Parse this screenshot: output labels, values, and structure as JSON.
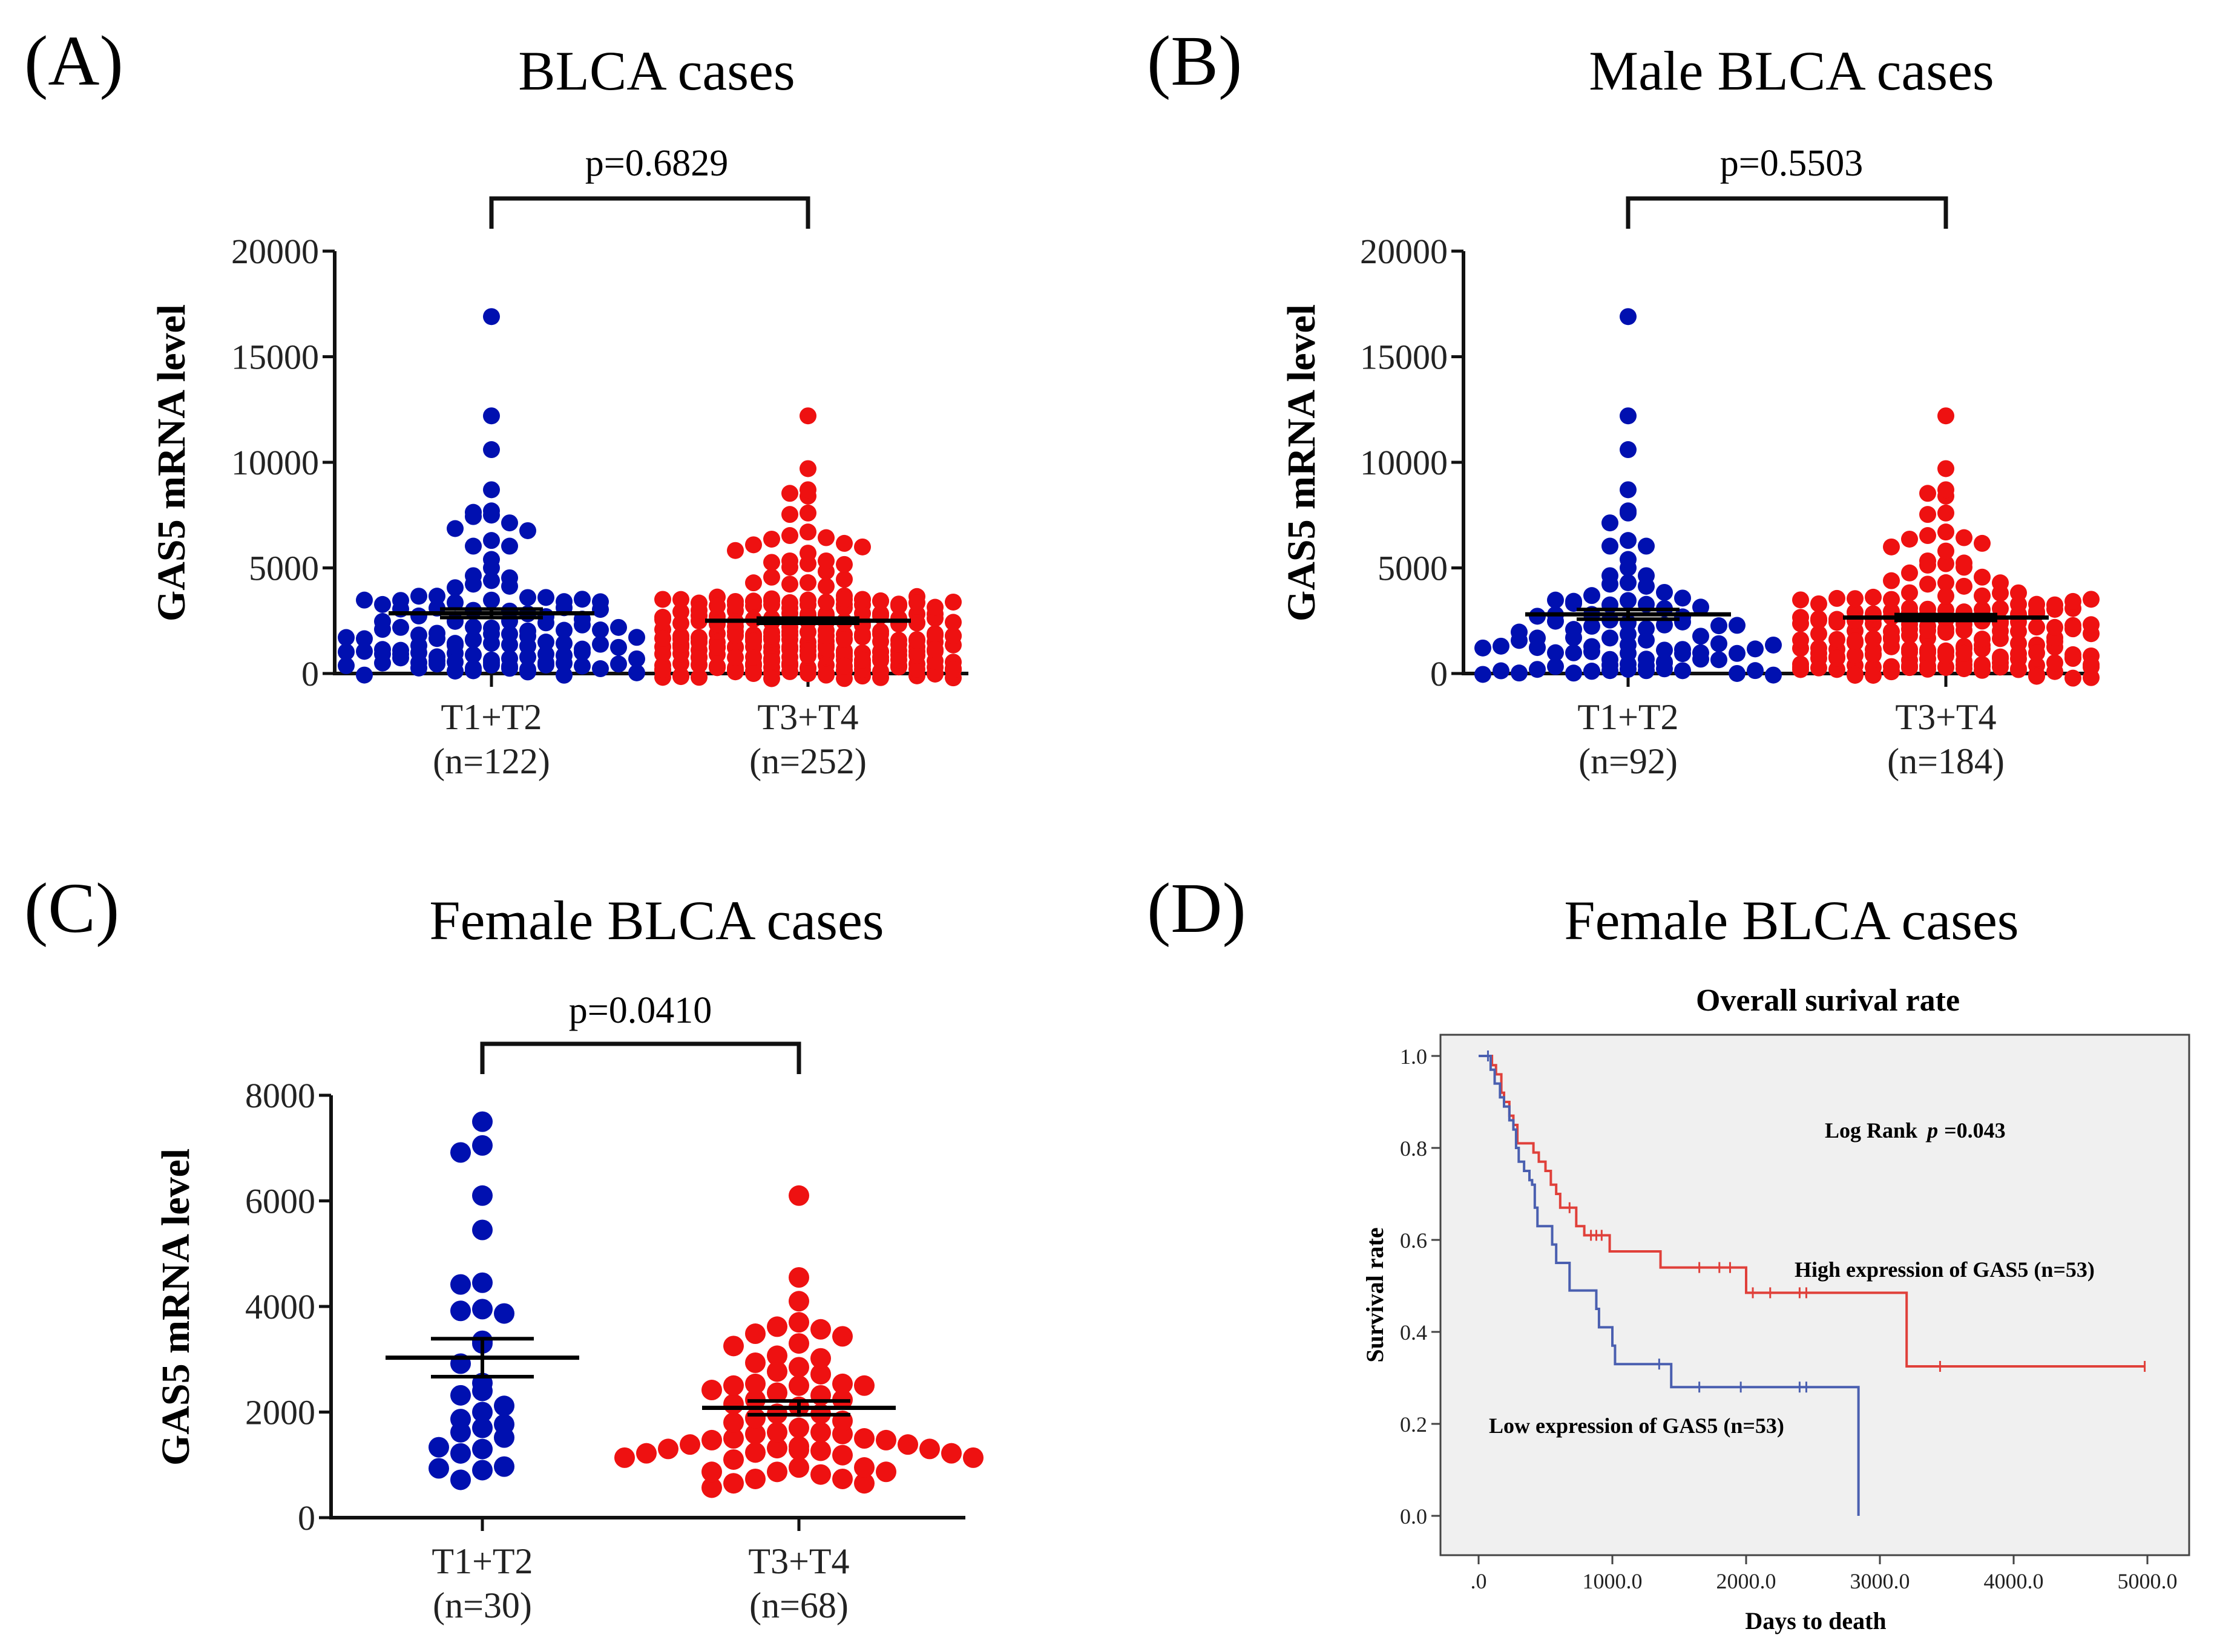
{
  "colors": {
    "low_group": "#0010b0",
    "high_group": "#ee1111",
    "km_high": "#e0403a",
    "km_low": "#4a5fb0",
    "km_bg": "#f0f0f0",
    "axis": "#111111"
  },
  "chart_data": [
    {
      "type": "scatter",
      "panel_label": "(A)",
      "title": "BLCA cases",
      "ylabel": "GAS5 mRNA level",
      "xlabel": "",
      "ylim": [
        0,
        20000
      ],
      "yticks": [
        0,
        5000,
        10000,
        15000,
        20000
      ],
      "ytick_labels": [
        "0",
        "5000",
        "10000",
        "15000",
        "20000"
      ],
      "categories": [
        "T1+T2",
        "T3+T4"
      ],
      "category_n": [
        "(n=122)",
        "(n=252)"
      ],
      "p_value_label": "p=0.6829",
      "series": [
        {
          "name": "T1+T2",
          "n": 122,
          "mean": 2850,
          "sem": 200,
          "outliers": [
            16900,
            12200,
            10600,
            8700,
            7700,
            7700,
            7500,
            7500,
            7200,
            7000,
            6900,
            6300,
            6100,
            6100,
            5400,
            5000,
            4700,
            4600,
            4400,
            4300,
            4200,
            4200
          ],
          "bulk_min": 200,
          "bulk_max": 4000
        },
        {
          "name": "T3+T4",
          "n": 252,
          "mean": 2500,
          "sem": 120,
          "outliers": [
            12200,
            9700,
            8700,
            8600,
            8400,
            7600,
            7600,
            6700,
            6600,
            6500,
            6500,
            6300,
            6300,
            6200,
            6100,
            5700,
            5400,
            5400,
            5400,
            5300,
            5200,
            5100,
            4900,
            4700,
            4600,
            4500,
            4300,
            4300,
            4200
          ],
          "bulk_min": 500,
          "bulk_max": 4100
        }
      ]
    },
    {
      "type": "scatter",
      "panel_label": "(B)",
      "title": "Male BLCA cases",
      "ylabel": "GAS5 mRNA level",
      "xlabel": "",
      "ylim": [
        0,
        20000
      ],
      "yticks": [
        0,
        5000,
        10000,
        15000,
        20000
      ],
      "ytick_labels": [
        "0",
        "5000",
        "10000",
        "15000",
        "20000"
      ],
      "categories": [
        "T1+T2",
        "T3+T4"
      ],
      "category_n": [
        "(n=92)",
        "(n=184)"
      ],
      "p_value_label": "p=0.5503",
      "series": [
        {
          "name": "T1+T2",
          "n": 92,
          "mean": 2800,
          "sem": 230,
          "outliers": [
            16900,
            12200,
            10600,
            8700,
            7700,
            7600,
            7200,
            6300,
            6100,
            6100,
            5400,
            5000,
            4700,
            4700,
            4300,
            4300,
            4200
          ],
          "bulk_min": 200,
          "bulk_max": 4000
        },
        {
          "name": "T3+T4",
          "n": 184,
          "mean": 2650,
          "sem": 140,
          "outliers": [
            12200,
            9700,
            8700,
            8600,
            8400,
            7600,
            7600,
            6700,
            6600,
            6500,
            6500,
            6300,
            6200,
            5800,
            5400,
            5300,
            5200,
            5200,
            5100,
            4900,
            4700,
            4600,
            4500,
            4300,
            4300,
            4200
          ],
          "bulk_min": 500,
          "bulk_max": 4100
        }
      ]
    },
    {
      "type": "scatter",
      "panel_label": "(C)",
      "title": "Female BLCA cases",
      "ylabel": "GAS5 mRNA level",
      "xlabel": "",
      "ylim": [
        0,
        8000
      ],
      "yticks": [
        0,
        2000,
        4000,
        6000,
        8000
      ],
      "ytick_labels": [
        "0",
        "2000",
        "4000",
        "6000",
        "8000"
      ],
      "categories": [
        "T1+T2",
        "T3+T4"
      ],
      "category_n": [
        "(n=30)",
        "(n=68)"
      ],
      "p_value_label": "p=0.0410",
      "series": [
        {
          "name": "T1+T2",
          "n": 30,
          "mean": 3030,
          "sem": 360,
          "points": [
            7500,
            7050,
            6950,
            6100,
            5450,
            4450,
            4450,
            3950,
            3950,
            3900,
            3350,
            3300,
            2950,
            2550,
            2400,
            2350,
            2150,
            2000,
            1900,
            1800,
            1700,
            1650,
            1550,
            1400,
            1300,
            1250,
            1000,
            1000,
            900,
            750
          ]
        },
        {
          "name": "T3+T4",
          "n": 68,
          "mean": 2080,
          "sem": 130,
          "points": [
            6100,
            4550,
            4100,
            3700,
            3650,
            3600,
            3550,
            3500,
            3350,
            3300,
            3100,
            3050,
            3000,
            2850,
            2800,
            2750,
            2600,
            2600,
            2600,
            2600,
            2550,
            2500,
            2400,
            2350,
            2300,
            2300,
            2250,
            2100,
            2000,
            2000,
            1950,
            1900,
            1900,
            1700,
            1650,
            1650,
            1650,
            1650,
            1600,
            1600,
            1600,
            1600,
            1550,
            1550,
            1500,
            1500,
            1450,
            1450,
            1400,
            1400,
            1400,
            1350,
            1350,
            1300,
            1300,
            1250,
            1200,
            1050,
            1000,
            1000,
            950,
            900,
            850,
            800,
            800,
            750,
            750,
            700
          ]
        }
      ]
    },
    {
      "type": "line",
      "subtype": "kaplan-meier",
      "panel_label": "(D)",
      "title": "Female BLCA cases",
      "subtitle": "Overall surival rate",
      "xlabel": "Days to death",
      "ylabel": "Survival rate",
      "xlim": [
        -300,
        5300
      ],
      "ylim": [
        -0.05,
        1.05
      ],
      "xticks": [
        0,
        1000,
        2000,
        3000,
        4000,
        5000
      ],
      "xtick_labels": [
        ".0",
        "1000.0",
        "2000.0",
        "3000.0",
        "4000.0",
        "5000.0"
      ],
      "yticks": [
        0.0,
        0.2,
        0.4,
        0.6,
        0.8,
        1.0
      ],
      "ytick_labels": [
        "0.0",
        "0.2",
        "0.4",
        "0.6",
        "0.8",
        "1.0"
      ],
      "annotation": "Log Rank",
      "annotation_p": "p",
      "annotation_value": "=0.043",
      "series": [
        {
          "name": "High expression of GAS5 (n=53)",
          "color_key": "km_high",
          "steps": [
            [
              0,
              1.0
            ],
            [
              60,
              1.0
            ],
            [
              100,
              0.98
            ],
            [
              130,
              0.96
            ],
            [
              170,
              0.92
            ],
            [
              190,
              0.9
            ],
            [
              230,
              0.87
            ],
            [
              260,
              0.85
            ],
            [
              290,
              0.81
            ],
            [
              380,
              0.81
            ],
            [
              410,
              0.79
            ],
            [
              450,
              0.77
            ],
            [
              500,
              0.75
            ],
            [
              540,
              0.72
            ],
            [
              580,
              0.7
            ],
            [
              610,
              0.67
            ],
            [
              700,
              0.67
            ],
            [
              730,
              0.63
            ],
            [
              790,
              0.61
            ],
            [
              960,
              0.61
            ],
            [
              980,
              0.575
            ],
            [
              1350,
              0.575
            ],
            [
              1360,
              0.54
            ],
            [
              1980,
              0.54
            ],
            [
              2000,
              0.485
            ],
            [
              3200,
              0.485
            ],
            [
              3200,
              0.325
            ],
            [
              4980,
              0.325
            ]
          ],
          "censors": [
            [
              680,
              0.67
            ],
            [
              840,
              0.61
            ],
            [
              880,
              0.61
            ],
            [
              920,
              0.61
            ],
            [
              1650,
              0.54
            ],
            [
              1800,
              0.54
            ],
            [
              1880,
              0.54
            ],
            [
              2050,
              0.485
            ],
            [
              2180,
              0.485
            ],
            [
              2400,
              0.485
            ],
            [
              2450,
              0.485
            ],
            [
              3450,
              0.325
            ],
            [
              4980,
              0.325
            ]
          ]
        },
        {
          "name": "Low expression of GAS5 (n=53)",
          "color_key": "km_low",
          "steps": [
            [
              0,
              1.0
            ],
            [
              60,
              1.0
            ],
            [
              90,
              0.97
            ],
            [
              120,
              0.94
            ],
            [
              160,
              0.91
            ],
            [
              190,
              0.89
            ],
            [
              230,
              0.86
            ],
            [
              260,
              0.84
            ],
            [
              280,
              0.8
            ],
            [
              300,
              0.77
            ],
            [
              340,
              0.75
            ],
            [
              380,
              0.73
            ],
            [
              400,
              0.72
            ],
            [
              420,
              0.67
            ],
            [
              440,
              0.63
            ],
            [
              520,
              0.63
            ],
            [
              550,
              0.59
            ],
            [
              580,
              0.55
            ],
            [
              650,
              0.55
            ],
            [
              680,
              0.49
            ],
            [
              850,
              0.49
            ],
            [
              880,
              0.45
            ],
            [
              900,
              0.41
            ],
            [
              980,
              0.41
            ],
            [
              1000,
              0.37
            ],
            [
              1020,
              0.33
            ],
            [
              1430,
              0.33
            ],
            [
              1440,
              0.28
            ],
            [
              2840,
              0.28
            ],
            [
              2840,
              0.0
            ]
          ],
          "censors": [
            [
              70,
              1.0
            ],
            [
              1350,
              0.33
            ],
            [
              1650,
              0.28
            ],
            [
              1960,
              0.28
            ],
            [
              2400,
              0.28
            ],
            [
              2450,
              0.28
            ]
          ]
        }
      ]
    }
  ]
}
